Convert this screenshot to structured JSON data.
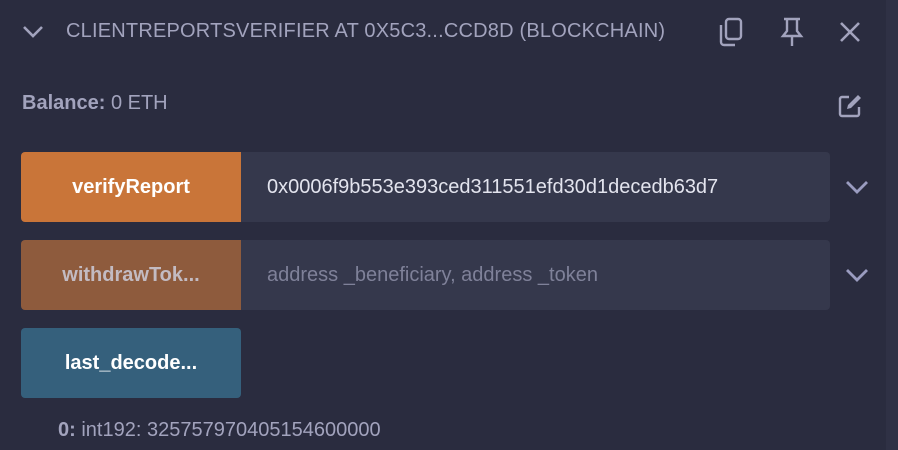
{
  "header": {
    "title": "CLIENTREPORTSVERIFIER AT 0X5C3...CCD8D (BLOCKCHAIN)"
  },
  "balance": {
    "label": "Balance:",
    "value": "0 ETH"
  },
  "functions": [
    {
      "label": "verifyReport",
      "value": "0x0006f9b553e393ced311551efd30d1decedb63d7",
      "placeholder": "",
      "color": "#c97539"
    },
    {
      "label": "withdrawTok...",
      "value": "",
      "placeholder": "address _beneficiary, address _token",
      "color": "#8e5b3d"
    },
    {
      "label": "last_decode...",
      "color": "#35607c"
    }
  ],
  "output": {
    "index": "0:",
    "type": "int192:",
    "value": "325757970405154600000"
  },
  "icons": [
    "chevron-down-icon",
    "copy-icon",
    "pin-icon",
    "close-icon",
    "edit-icon"
  ]
}
